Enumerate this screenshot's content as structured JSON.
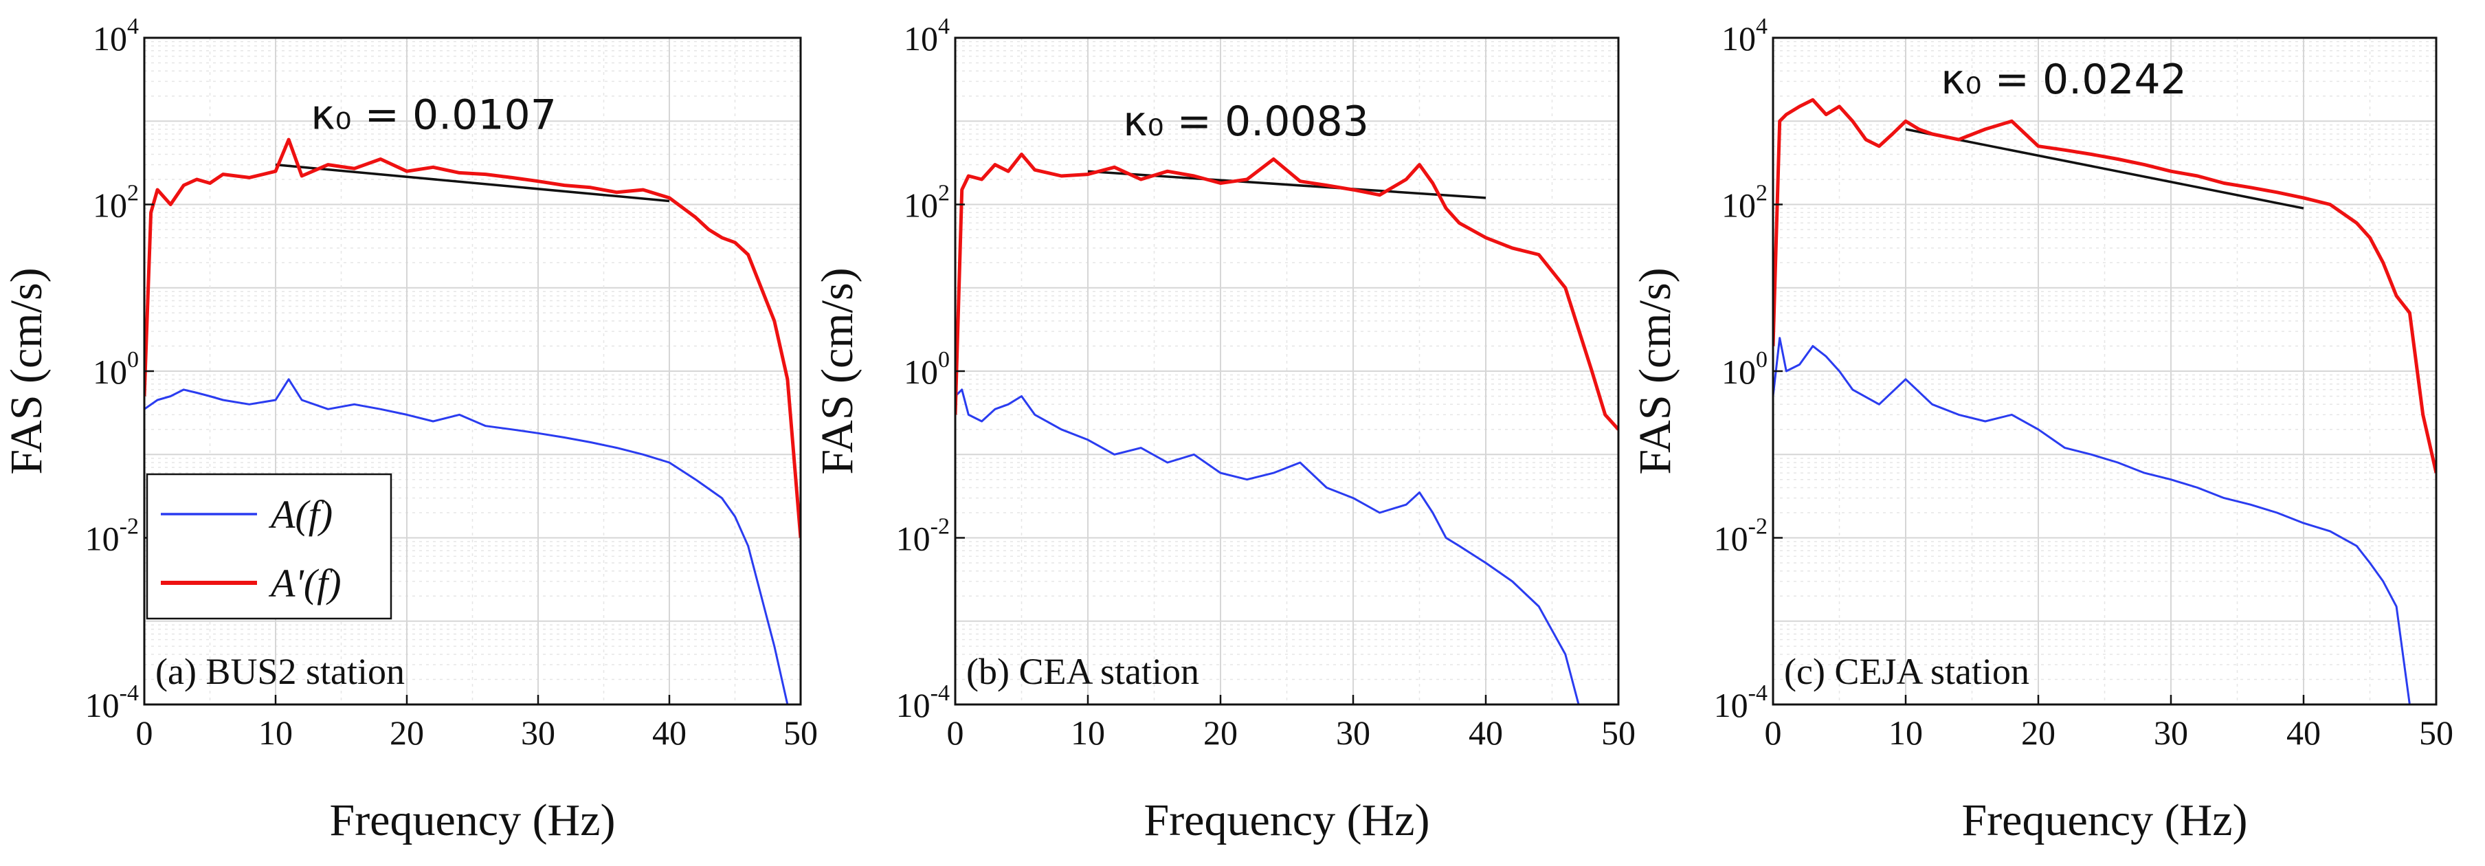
{
  "chart_data": [
    {
      "type": "line",
      "panel_label": "(a) BUS2 station",
      "xlabel": "Frequency (Hz)",
      "ylabel": "FAS (cm/s)",
      "xlim": [
        0,
        50
      ],
      "ylim": [
        0.0001,
        10000
      ],
      "yscale": "log",
      "x_ticks": [
        "0",
        "10",
        "20",
        "30",
        "40",
        "50"
      ],
      "y_ticks": [
        {
          "base": "10",
          "exp": "-4"
        },
        {
          "base": "10",
          "exp": "-2"
        },
        {
          "base": "10",
          "exp": "0"
        },
        {
          "base": "10",
          "exp": "2"
        },
        {
          "base": "10",
          "exp": "4"
        }
      ],
      "grid": true,
      "legend": {
        "placement": "bottom-left",
        "entries": [
          {
            "label": "A(f)",
            "color": "#2a3cf0"
          },
          {
            "label": "A'(f)",
            "color": "#ee1111"
          }
        ]
      },
      "annotation": {
        "kappa_text": "κ₀ = 0.0107",
        "fit_line": {
          "x": [
            10,
            40
          ],
          "y": [
            300,
            110
          ]
        }
      },
      "series": [
        {
          "name": "A(f)",
          "color": "#2a3cf0",
          "x": [
            0,
            1,
            2,
            3,
            4,
            5,
            6,
            8,
            10,
            11,
            12,
            14,
            16,
            18,
            20,
            22,
            24,
            26,
            28,
            30,
            32,
            34,
            36,
            38,
            40,
            42,
            44,
            45,
            46,
            47,
            48,
            49
          ],
          "y": [
            0.35,
            0.45,
            0.5,
            0.6,
            0.55,
            0.5,
            0.45,
            0.4,
            0.45,
            0.8,
            0.45,
            0.35,
            0.4,
            0.35,
            0.3,
            0.25,
            0.3,
            0.22,
            0.2,
            0.18,
            0.16,
            0.14,
            0.12,
            0.1,
            0.08,
            0.05,
            0.03,
            0.018,
            0.008,
            0.002,
            0.0005,
            0.0001
          ]
        },
        {
          "name": "A'(f)",
          "color": "#ee1111",
          "x": [
            0,
            0.5,
            1,
            2,
            3,
            4,
            5,
            6,
            8,
            10,
            11,
            12,
            14,
            16,
            18,
            20,
            22,
            24,
            26,
            28,
            30,
            32,
            34,
            36,
            38,
            40,
            42,
            43,
            44,
            45,
            46,
            47,
            48,
            49,
            50
          ],
          "y": [
            0.5,
            80,
            150,
            100,
            170,
            200,
            180,
            230,
            210,
            250,
            600,
            220,
            300,
            270,
            350,
            250,
            280,
            240,
            230,
            210,
            190,
            170,
            160,
            140,
            150,
            120,
            70,
            50,
            40,
            35,
            25,
            10,
            4,
            0.8,
            0.01
          ]
        }
      ]
    },
    {
      "type": "line",
      "panel_label": "(b) CEA station",
      "xlabel": "Frequency (Hz)",
      "ylabel": "FAS (cm/s)",
      "xlim": [
        0,
        50
      ],
      "ylim": [
        0.0001,
        10000
      ],
      "yscale": "log",
      "x_ticks": [
        "0",
        "10",
        "20",
        "30",
        "40",
        "50"
      ],
      "y_ticks": [
        {
          "base": "10",
          "exp": "-4"
        },
        {
          "base": "10",
          "exp": "-2"
        },
        {
          "base": "10",
          "exp": "0"
        },
        {
          "base": "10",
          "exp": "2"
        },
        {
          "base": "10",
          "exp": "4"
        }
      ],
      "grid": true,
      "annotation": {
        "kappa_text": "κ₀ = 0.0083",
        "fit_line": {
          "x": [
            10,
            40
          ],
          "y": [
            250,
            120
          ]
        }
      },
      "series": [
        {
          "name": "A(f)",
          "color": "#2a3cf0",
          "x": [
            0,
            0.5,
            1,
            2,
            3,
            4,
            5,
            6,
            8,
            10,
            12,
            14,
            16,
            18,
            20,
            22,
            24,
            26,
            28,
            30,
            32,
            34,
            35,
            36,
            37,
            38,
            40,
            42,
            44,
            46,
            47
          ],
          "y": [
            0.5,
            0.6,
            0.3,
            0.25,
            0.35,
            0.4,
            0.5,
            0.3,
            0.2,
            0.15,
            0.1,
            0.12,
            0.08,
            0.1,
            0.06,
            0.05,
            0.06,
            0.08,
            0.04,
            0.03,
            0.02,
            0.025,
            0.035,
            0.02,
            0.01,
            0.008,
            0.005,
            0.003,
            0.0015,
            0.0004,
            0.0001
          ]
        },
        {
          "name": "A'(f)",
          "color": "#ee1111",
          "x": [
            0,
            0.5,
            1,
            2,
            3,
            4,
            5,
            6,
            8,
            10,
            12,
            14,
            16,
            18,
            20,
            22,
            24,
            26,
            28,
            30,
            32,
            34,
            35,
            36,
            37,
            38,
            40,
            42,
            44,
            46,
            48,
            49,
            50
          ],
          "y": [
            0.3,
            150,
            220,
            200,
            300,
            250,
            400,
            260,
            220,
            230,
            280,
            200,
            250,
            220,
            180,
            200,
            350,
            190,
            170,
            150,
            130,
            200,
            300,
            180,
            90,
            60,
            40,
            30,
            25,
            10,
            1,
            0.3,
            0.2
          ]
        }
      ]
    },
    {
      "type": "line",
      "panel_label": "(c) CEJA station",
      "xlabel": "Frequency (Hz)",
      "ylabel": "FAS (cm/s)",
      "xlim": [
        0,
        50
      ],
      "ylim": [
        0.0001,
        10000
      ],
      "yscale": "log",
      "x_ticks": [
        "0",
        "10",
        "20",
        "30",
        "40",
        "50"
      ],
      "y_ticks": [
        {
          "base": "10",
          "exp": "-4"
        },
        {
          "base": "10",
          "exp": "-2"
        },
        {
          "base": "10",
          "exp": "0"
        },
        {
          "base": "10",
          "exp": "2"
        },
        {
          "base": "10",
          "exp": "4"
        }
      ],
      "grid": true,
      "annotation": {
        "kappa_text": "κ₀ = 0.0242",
        "fit_line": {
          "x": [
            10,
            40
          ],
          "y": [
            800,
            90
          ]
        }
      },
      "series": [
        {
          "name": "A(f)",
          "color": "#2a3cf0",
          "x": [
            0,
            0.5,
            1,
            2,
            3,
            4,
            5,
            6,
            8,
            10,
            12,
            14,
            16,
            18,
            20,
            22,
            24,
            26,
            28,
            30,
            32,
            34,
            36,
            38,
            40,
            42,
            44,
            45,
            46,
            47,
            48
          ],
          "y": [
            0.5,
            2.5,
            1.0,
            1.2,
            2.0,
            1.5,
            1.0,
            0.6,
            0.4,
            0.8,
            0.4,
            0.3,
            0.25,
            0.3,
            0.2,
            0.12,
            0.1,
            0.08,
            0.06,
            0.05,
            0.04,
            0.03,
            0.025,
            0.02,
            0.015,
            0.012,
            0.008,
            0.005,
            0.003,
            0.0015,
            0.0001
          ]
        },
        {
          "name": "A'(f)",
          "color": "#ee1111",
          "x": [
            0,
            0.5,
            1,
            2,
            3,
            4,
            5,
            6,
            7,
            8,
            9,
            10,
            11,
            12,
            14,
            16,
            18,
            20,
            22,
            24,
            26,
            28,
            30,
            32,
            34,
            36,
            38,
            40,
            42,
            44,
            45,
            46,
            47,
            48,
            49,
            50
          ],
          "y": [
            2,
            1000,
            1200,
            1500,
            1800,
            1200,
            1500,
            1000,
            600,
            500,
            700,
            1000,
            800,
            700,
            600,
            800,
            1000,
            500,
            450,
            400,
            350,
            300,
            250,
            220,
            180,
            160,
            140,
            120,
            100,
            60,
            40,
            20,
            8,
            5,
            0.3,
            0.06
          ]
        }
      ]
    }
  ]
}
